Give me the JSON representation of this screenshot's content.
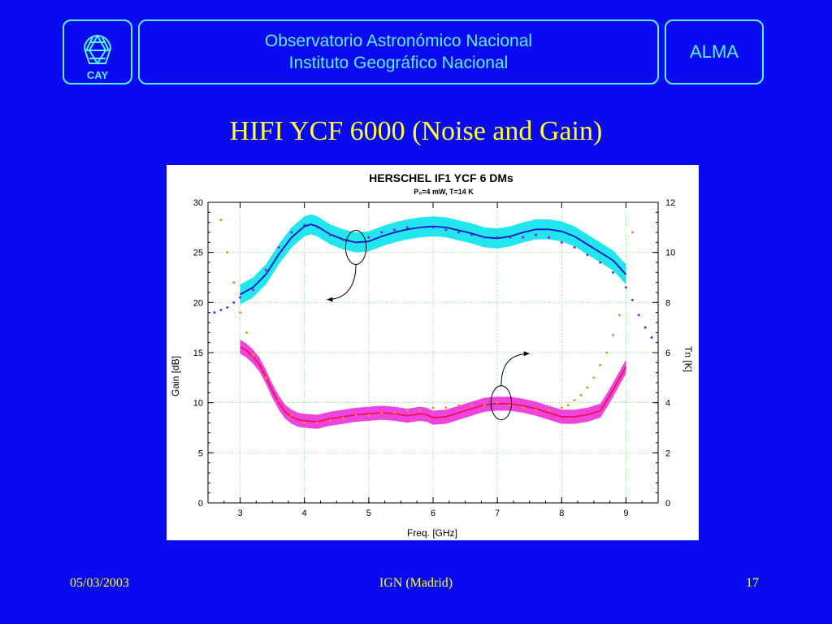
{
  "header": {
    "line1": "Observatorio Astronómico Nacional",
    "line2": "Instituto Geográfico Nacional",
    "right_label": "ALMA",
    "logo_text": "CAY"
  },
  "slide_title": "HIFI YCF 6000 (Noise and Gain)",
  "footer": {
    "date": "05/03/2003",
    "center": "IGN (Madrid)",
    "page": "17"
  },
  "colors": {
    "background": "#0a0af0",
    "accent": "#5cf0f0",
    "title": "#ffff33",
    "gain_band": "#22e6ee",
    "noise_band": "#ee44dd"
  },
  "chart_data": {
    "type": "line",
    "title": "HERSCHEL IF1 YCF 6 DMs",
    "subtitle": "P₀=4 mW,  T=14 K",
    "xlabel": "Freq. [GHz]",
    "ylabel": "Gain [dB]",
    "y2label": "Tn [K]",
    "xlim": [
      2.5,
      9.5
    ],
    "ylim": [
      0,
      30
    ],
    "y2lim": [
      0,
      12
    ],
    "xticks": [
      3,
      4,
      5,
      6,
      7,
      8,
      9
    ],
    "yticks": [
      0,
      5,
      10,
      15,
      20,
      25,
      30
    ],
    "y2ticks": [
      0,
      2,
      4,
      6,
      8,
      10,
      12
    ],
    "grid": true,
    "series": [
      {
        "axis": "left",
        "style": "line-band",
        "color": "#1010cc",
        "band_color": "#22e6ee",
        "x": [
          3.0,
          3.2,
          3.4,
          3.6,
          3.8,
          4.0,
          4.1,
          4.2,
          4.4,
          4.6,
          4.8,
          5.0,
          5.2,
          5.4,
          5.6,
          5.8,
          6.0,
          6.2,
          6.4,
          6.6,
          6.8,
          7.0,
          7.2,
          7.4,
          7.6,
          7.8,
          8.0,
          8.2,
          8.4,
          8.6,
          8.8,
          9.0
        ],
        "y": [
          20.8,
          21.5,
          22.8,
          24.8,
          26.5,
          27.6,
          27.8,
          27.6,
          26.8,
          26.3,
          26.0,
          26.1,
          26.6,
          27.0,
          27.3,
          27.5,
          27.6,
          27.5,
          27.2,
          26.9,
          26.5,
          26.4,
          26.6,
          27.0,
          27.3,
          27.3,
          27.1,
          26.6,
          25.8,
          25.0,
          24.2,
          22.8
        ],
        "band": 1.0
      },
      {
        "axis": "left",
        "style": "line-band",
        "color": "#ee1155",
        "band_color": "#ee44dd",
        "x": [
          3.0,
          3.1,
          3.2,
          3.3,
          3.4,
          3.5,
          3.6,
          3.7,
          3.8,
          3.9,
          4.0,
          4.2,
          4.4,
          4.6,
          4.8,
          5.0,
          5.2,
          5.4,
          5.6,
          5.8,
          5.9,
          6.0,
          6.2,
          6.4,
          6.6,
          6.8,
          7.0,
          7.2,
          7.4,
          7.6,
          7.8,
          8.0,
          8.2,
          8.4,
          8.6,
          8.7,
          8.8,
          9.0
        ],
        "y": [
          15.6,
          15.2,
          14.6,
          13.8,
          12.6,
          11.2,
          10.0,
          9.1,
          8.6,
          8.3,
          8.2,
          8.1,
          8.4,
          8.6,
          8.8,
          8.9,
          9.0,
          8.9,
          8.7,
          8.9,
          8.8,
          8.5,
          8.6,
          9.0,
          9.4,
          9.8,
          9.9,
          9.9,
          9.7,
          9.4,
          9.0,
          8.6,
          8.6,
          8.8,
          9.2,
          10.2,
          11.3,
          13.6
        ],
        "band": 0.7
      },
      {
        "axis": "right",
        "style": "dots",
        "color": "#8822cc",
        "x": [
          2.6,
          2.7,
          2.8,
          2.9,
          3.0,
          3.2,
          3.4,
          3.6,
          3.8,
          4.0,
          4.2,
          4.4,
          4.6,
          4.8,
          5.0,
          5.2,
          5.4,
          5.6,
          5.8,
          6.0,
          6.2,
          6.4,
          6.6,
          6.8,
          7.0,
          7.2,
          7.4,
          7.6,
          7.8,
          8.0,
          8.2,
          8.4,
          8.6,
          8.8,
          9.0,
          9.1,
          9.2,
          9.3,
          9.4
        ],
        "y": [
          7.6,
          7.7,
          7.8,
          8.0,
          8.2,
          8.5,
          9.3,
          10.2,
          10.8,
          11.1,
          11.0,
          10.7,
          10.5,
          10.4,
          10.6,
          10.8,
          10.9,
          11.0,
          11.0,
          11.0,
          10.9,
          10.8,
          10.7,
          10.6,
          10.6,
          10.6,
          10.6,
          10.7,
          10.6,
          10.4,
          10.2,
          9.9,
          9.6,
          9.2,
          8.6,
          8.1,
          7.5,
          7.0,
          6.6
        ]
      },
      {
        "axis": "right",
        "style": "dots",
        "color": "#ff8820",
        "x": [
          2.7,
          2.8,
          2.9,
          3.0,
          3.1,
          3.2,
          3.4,
          3.6,
          3.8,
          4.0,
          4.2,
          4.4,
          4.6,
          4.8,
          5.0,
          5.2,
          5.4,
          5.6,
          5.8,
          6.0,
          6.2,
          6.4,
          6.6,
          6.8,
          7.0,
          7.2,
          7.4,
          7.6,
          7.8,
          8.0,
          8.1,
          8.2,
          8.3,
          8.4,
          8.5,
          8.6,
          8.7,
          8.8,
          8.9,
          9.1
        ],
        "y": [
          11.3,
          10.0,
          8.8,
          7.6,
          6.8,
          5.9,
          5.0,
          4.1,
          3.5,
          3.2,
          3.2,
          3.3,
          3.4,
          3.5,
          3.5,
          3.6,
          3.6,
          3.7,
          3.7,
          3.8,
          3.8,
          3.9,
          3.9,
          3.9,
          4.0,
          3.9,
          3.8,
          3.7,
          3.7,
          3.8,
          3.9,
          4.1,
          4.3,
          4.6,
          5.0,
          5.5,
          6.0,
          6.7,
          7.5,
          10.8
        ]
      }
    ],
    "annotations": [
      {
        "shape": "ellipse",
        "x": 4.8,
        "y": 25.5,
        "w": 0.32,
        "h": 3.4
      },
      {
        "shape": "arrow",
        "from": [
          4.8,
          23.8
        ],
        "to": [
          4.35,
          20.3
        ],
        "direction": "left"
      },
      {
        "shape": "ellipse",
        "x": 7.06,
        "y": 10.0,
        "w": 0.32,
        "h": 3.4
      },
      {
        "shape": "arrow",
        "from": [
          7.06,
          11.7
        ],
        "to": [
          7.5,
          14.9
        ],
        "direction": "right"
      }
    ]
  }
}
